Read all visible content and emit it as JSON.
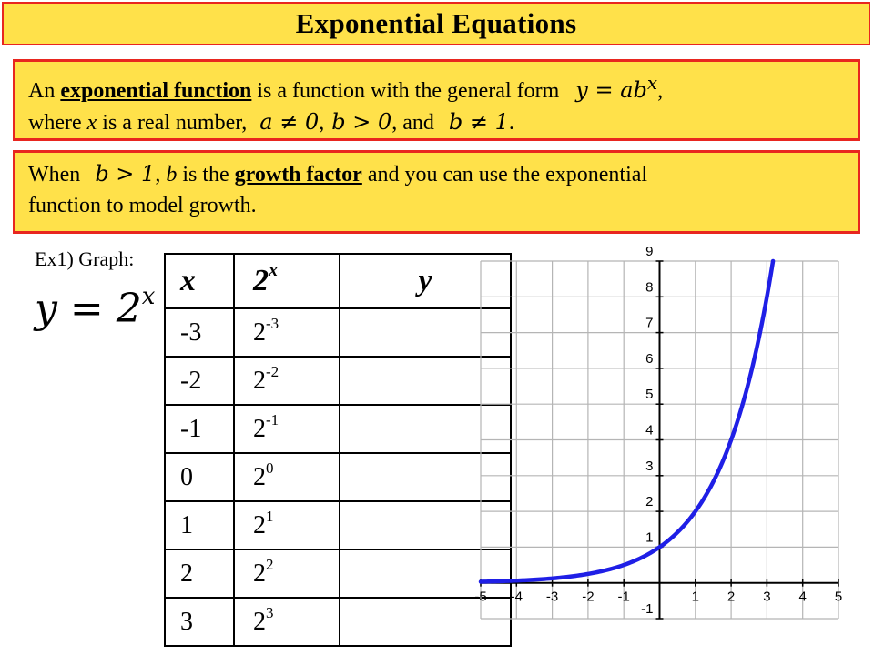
{
  "title": "Exponential Equations",
  "definition": {
    "part1": "An ",
    "term": "exponential function",
    "part2": " is a function with the general form ",
    "formula": "y = ab",
    "formula_exp": "x",
    "part3": ",",
    "line2a": "where ",
    "var_x": "x",
    "line2b": " is a real number, ",
    "cond1": "a ≠ 0",
    "sep1": ",",
    "cond2": "b > 0",
    "sep2": ", and ",
    "cond3": "b ≠ 1",
    "end": "."
  },
  "growth": {
    "part1": "When ",
    "cond": "b > 1",
    "part2": ", ",
    "var_b": "b",
    "part3": " is the ",
    "term": "growth factor",
    "part4": " and you can use the exponential",
    "line2": "function to model growth."
  },
  "example": {
    "label": "Ex1) Graph:",
    "equation_base": "y = 2",
    "equation_exp": "x"
  },
  "table": {
    "headers": {
      "x": "x",
      "base": "2",
      "exp": "x",
      "y": "y"
    },
    "rows": [
      {
        "x": "-3",
        "base": "2",
        "exp": "-3",
        "y": ""
      },
      {
        "x": "-2",
        "base": "2",
        "exp": "-2",
        "y": ""
      },
      {
        "x": "-1",
        "base": "2",
        "exp": "-1",
        "y": ""
      },
      {
        "x": "0",
        "base": "2",
        "exp": "0",
        "y": ""
      },
      {
        "x": "1",
        "base": "2",
        "exp": "1",
        "y": ""
      },
      {
        "x": "2",
        "base": "2",
        "exp": "2",
        "y": ""
      },
      {
        "x": "3",
        "base": "2",
        "exp": "3",
        "y": ""
      }
    ]
  },
  "chart_data": {
    "type": "line",
    "function": "y = 2^x",
    "title": "",
    "xlabel": "",
    "ylabel": "",
    "xlim": [
      -5,
      5
    ],
    "ylim": [
      -1,
      9
    ],
    "grid": true,
    "x_ticks": [
      "-5",
      "-4",
      "-3",
      "-2",
      "-1",
      "1",
      "2",
      "3",
      "4",
      "5"
    ],
    "y_ticks": [
      "1",
      "2",
      "3",
      "4",
      "5",
      "6",
      "7",
      "8",
      "9",
      "-1"
    ],
    "x_tick_values": [
      -5,
      -4,
      -3,
      -2,
      -1,
      1,
      2,
      3,
      4,
      5
    ],
    "y_tick_values": [
      1,
      2,
      3,
      4,
      5,
      6,
      7,
      8,
      9,
      -1
    ],
    "series": [
      {
        "x": [
          -5,
          -4,
          -3,
          -2,
          -1,
          0,
          1,
          2,
          3,
          3.17
        ],
        "y": [
          0.031,
          0.063,
          0.125,
          0.25,
          0.5,
          1,
          2,
          4,
          8,
          9
        ],
        "color": "#1f1fe6"
      }
    ]
  },
  "colors": {
    "banner_fill": "#ffe14a",
    "banner_border": "#e8261f",
    "curve": "#1f1fe6"
  }
}
